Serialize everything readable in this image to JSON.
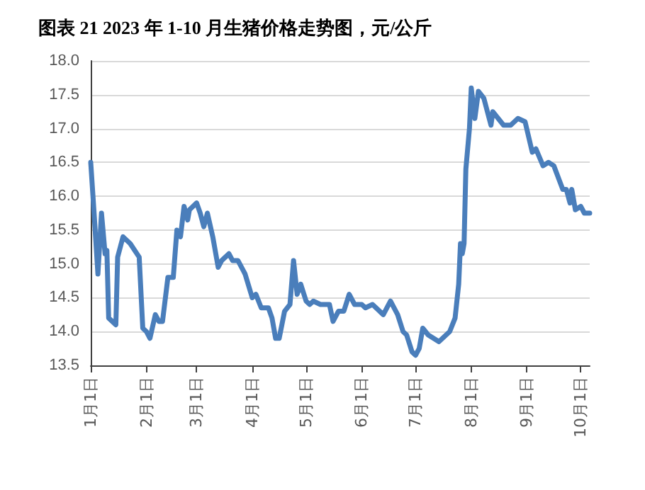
{
  "chart_data": {
    "type": "line",
    "title": "图表 21 2023 年 1-10 月生猪价格走势图，元/公斤",
    "x": [
      "2023-01-01",
      "2023-01-03",
      "2023-01-05",
      "2023-01-07",
      "2023-01-09",
      "2023-01-10",
      "2023-01-11",
      "2023-01-13",
      "2023-01-15",
      "2023-01-16",
      "2023-01-19",
      "2023-01-23",
      "2023-01-28",
      "2023-01-30",
      "2023-02-01",
      "2023-02-03",
      "2023-02-06",
      "2023-02-08",
      "2023-02-10",
      "2023-02-13",
      "2023-02-16",
      "2023-02-18",
      "2023-02-20",
      "2023-02-22",
      "2023-02-24",
      "2023-02-25",
      "2023-03-01",
      "2023-03-03",
      "2023-03-05",
      "2023-03-07",
      "2023-03-10",
      "2023-03-13",
      "2023-03-15",
      "2023-03-19",
      "2023-03-21",
      "2023-03-24",
      "2023-03-27",
      "2023-03-28",
      "2023-04-01",
      "2023-04-03",
      "2023-04-06",
      "2023-04-10",
      "2023-04-12",
      "2023-04-14",
      "2023-04-16",
      "2023-04-19",
      "2023-04-22",
      "2023-04-24",
      "2023-04-26",
      "2023-04-28",
      "2023-05-01",
      "2023-05-03",
      "2023-05-05",
      "2023-05-09",
      "2023-05-14",
      "2023-05-16",
      "2023-05-19",
      "2023-05-22",
      "2023-05-25",
      "2023-05-28",
      "2023-06-01",
      "2023-06-03",
      "2023-06-07",
      "2023-06-13",
      "2023-06-17",
      "2023-06-21",
      "2023-06-24",
      "2023-06-26",
      "2023-06-29",
      "2023-07-01",
      "2023-07-03",
      "2023-07-05",
      "2023-07-08",
      "2023-07-14",
      "2023-07-18",
      "2023-07-20",
      "2023-07-23",
      "2023-07-25",
      "2023-07-26",
      "2023-07-27",
      "2023-07-28",
      "2023-07-29",
      "2023-07-31",
      "2023-08-01",
      "2023-08-03",
      "2023-08-05",
      "2023-08-08",
      "2023-08-12",
      "2023-08-13",
      "2023-08-16",
      "2023-08-19",
      "2023-08-23",
      "2023-08-27",
      "2023-08-31",
      "2023-09-04",
      "2023-09-06",
      "2023-09-10",
      "2023-09-13",
      "2023-09-16",
      "2023-09-21",
      "2023-09-23",
      "2023-09-25",
      "2023-09-26",
      "2023-09-28",
      "2023-10-01",
      "2023-10-03",
      "2023-10-06"
    ],
    "series": [
      {
        "color": "#4a7ebb",
        "values": [
          16.5,
          15.7,
          14.85,
          15.75,
          15.15,
          15.2,
          14.2,
          14.15,
          14.1,
          15.1,
          15.4,
          15.3,
          15.1,
          14.05,
          14.0,
          13.9,
          14.25,
          14.15,
          14.15,
          14.8,
          14.8,
          15.5,
          15.4,
          15.85,
          15.65,
          15.8,
          15.9,
          15.75,
          15.55,
          15.75,
          15.4,
          14.95,
          15.05,
          15.15,
          15.05,
          15.05,
          14.9,
          14.85,
          14.5,
          14.55,
          14.35,
          14.35,
          14.2,
          13.9,
          13.9,
          14.3,
          14.4,
          15.05,
          14.55,
          14.7,
          14.45,
          14.4,
          14.45,
          14.4,
          14.4,
          14.15,
          14.3,
          14.3,
          14.55,
          14.4,
          14.4,
          14.35,
          14.4,
          14.25,
          14.45,
          14.25,
          14.0,
          13.95,
          13.7,
          13.65,
          13.75,
          14.05,
          13.95,
          13.85,
          13.95,
          14.0,
          14.2,
          14.7,
          15.3,
          15.15,
          15.3,
          16.4,
          17.0,
          17.6,
          17.15,
          17.55,
          17.45,
          17.05,
          17.25,
          17.15,
          17.05,
          17.05,
          17.15,
          17.1,
          16.65,
          16.7,
          16.45,
          16.5,
          16.45,
          16.1,
          16.1,
          15.9,
          16.1,
          15.8,
          15.85,
          15.75,
          15.75
        ]
      }
    ],
    "xlim": [
      "2023-01-01",
      "2023-10-06"
    ],
    "xticks": [
      {
        "value": "2023-01-01",
        "label": "1月1日"
      },
      {
        "value": "2023-02-01",
        "label": "2月1日"
      },
      {
        "value": "2023-03-01",
        "label": "3月1日"
      },
      {
        "value": "2023-04-01",
        "label": "4月1日"
      },
      {
        "value": "2023-05-01",
        "label": "5月1日"
      },
      {
        "value": "2023-06-01",
        "label": "6月1日"
      },
      {
        "value": "2023-07-01",
        "label": "7月1日"
      },
      {
        "value": "2023-08-01",
        "label": "8月1日"
      },
      {
        "value": "2023-09-01",
        "label": "9月1日"
      },
      {
        "value": "2023-10-01",
        "label": "10月1日"
      }
    ],
    "ylim": [
      13.5,
      18.0
    ],
    "yticks": [
      {
        "value": 13.5,
        "label": "13.5"
      },
      {
        "value": 14.0,
        "label": "14.0"
      },
      {
        "value": 14.5,
        "label": "14.5"
      },
      {
        "value": 15.0,
        "label": "15.0"
      },
      {
        "value": 15.5,
        "label": "15.5"
      },
      {
        "value": 16.0,
        "label": "16.0"
      },
      {
        "value": 16.5,
        "label": "16.5"
      },
      {
        "value": 17.0,
        "label": "17.0"
      },
      {
        "value": 17.5,
        "label": "17.5"
      },
      {
        "value": 18.0,
        "label": "18.0"
      }
    ],
    "grid": "y",
    "marker": "none",
    "line_style": "solid"
  }
}
